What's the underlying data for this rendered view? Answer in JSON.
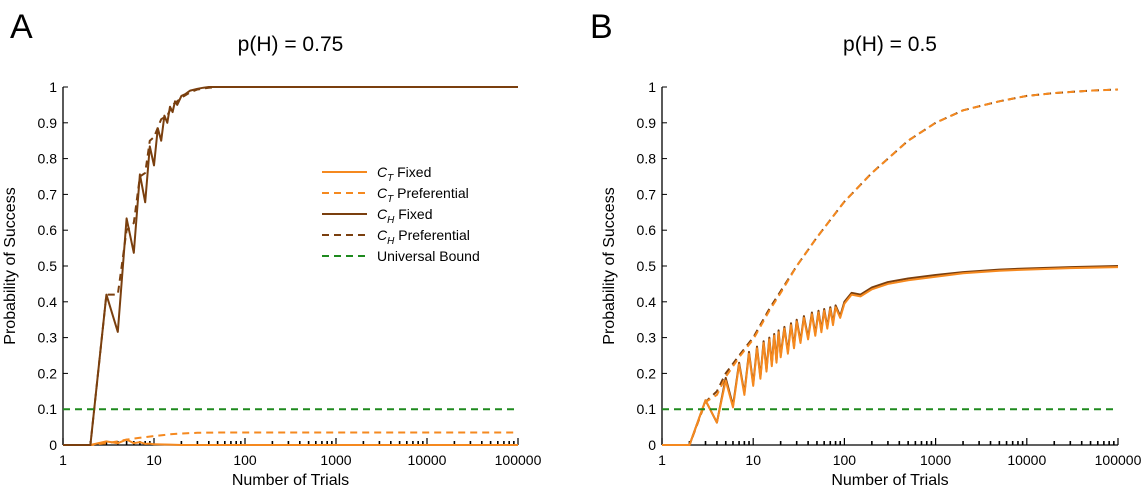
{
  "colors": {
    "ct": "#F5891F",
    "ch": "#7A3F0E",
    "bound": "#1E8A1E",
    "axis": "#000000"
  },
  "chart_data": [
    {
      "panel_label": "A",
      "type": "line",
      "title": "p(H) = 0.75",
      "xlabel": "Number of Trials",
      "ylabel": "Probability of Success",
      "xscale": "log",
      "xlim": [
        1,
        100000
      ],
      "ylim": [
        0,
        1
      ],
      "xticks": [
        "1",
        "10",
        "100",
        "1000",
        "10000",
        "100000"
      ],
      "yticks": [
        "0",
        "0.1",
        "0.2",
        "0.3",
        "0.4",
        "0.5",
        "0.6",
        "0.7",
        "0.8",
        "0.9",
        "1"
      ],
      "legend_position": "right-middle",
      "series": [
        {
          "key": "ct_fixed",
          "name_main": "C",
          "name_sub": "T",
          "name_rest": " Fixed",
          "style": "solid",
          "x": [
            1,
            2,
            3,
            4,
            5,
            6,
            7,
            8,
            9,
            10,
            15,
            20,
            50,
            100,
            100000
          ],
          "y": [
            0,
            0,
            0.01,
            0.005,
            0.015,
            0.005,
            0.008,
            0.003,
            0.004,
            0.002,
            0.001,
            0,
            0,
            0,
            0
          ]
        },
        {
          "key": "ct_pref",
          "name_main": "C",
          "name_sub": "T",
          "name_rest": " Preferential",
          "style": "dashed",
          "x": [
            1,
            2,
            3,
            4,
            5,
            7,
            10,
            15,
            20,
            30,
            50,
            100,
            1000,
            100000
          ],
          "y": [
            0,
            0,
            0.005,
            0.01,
            0.015,
            0.02,
            0.025,
            0.03,
            0.032,
            0.034,
            0.035,
            0.035,
            0.035,
            0.035
          ]
        },
        {
          "key": "ch_fixed",
          "name_main": "C",
          "name_sub": "H",
          "name_rest": " Fixed",
          "style": "solid",
          "x": [
            1,
            2,
            3,
            4,
            5,
            6,
            7,
            8,
            9,
            10,
            11,
            12,
            13,
            14,
            15,
            16,
            17,
            18,
            20,
            22,
            25,
            30,
            35,
            40,
            50,
            100,
            1000,
            100000
          ],
          "y": [
            0,
            0,
            0.42,
            0.316,
            0.633,
            0.537,
            0.756,
            0.678,
            0.834,
            0.781,
            0.885,
            0.85,
            0.92,
            0.9,
            0.945,
            0.93,
            0.96,
            0.95,
            0.975,
            0.98,
            0.99,
            0.995,
            0.998,
            1,
            1,
            1,
            1,
            1
          ]
        },
        {
          "key": "ch_pref",
          "name_main": "C",
          "name_sub": "H",
          "name_rest": " Preferential",
          "style": "dashed",
          "x": [
            1,
            2,
            3,
            4,
            5,
            6,
            7,
            8,
            9,
            10,
            12,
            14,
            16,
            18,
            20,
            25,
            30,
            40,
            50,
            100,
            100000
          ],
          "y": [
            0,
            0,
            0.42,
            0.42,
            0.6,
            0.62,
            0.75,
            0.76,
            0.85,
            0.86,
            0.91,
            0.92,
            0.95,
            0.96,
            0.97,
            0.985,
            0.993,
            0.998,
            1,
            1,
            1
          ]
        },
        {
          "key": "bound",
          "name_main": "Universal Bound",
          "name_sub": "",
          "name_rest": "",
          "style": "dashed",
          "x": [
            1,
            100000
          ],
          "y": [
            0.1,
            0.1
          ]
        }
      ]
    },
    {
      "panel_label": "B",
      "type": "line",
      "title": "p(H) = 0.5",
      "xlabel": "Number of Trials",
      "ylabel": "Probability of Success",
      "xscale": "log",
      "xlim": [
        1,
        100000
      ],
      "ylim": [
        0,
        1
      ],
      "xticks": [
        "1",
        "10",
        "100",
        "1000",
        "10000",
        "100000"
      ],
      "yticks": [
        "0",
        "0.1",
        "0.2",
        "0.3",
        "0.4",
        "0.5",
        "0.6",
        "0.7",
        "0.8",
        "0.9",
        "1"
      ],
      "series": [
        {
          "key": "pref_dark",
          "style": "dashed",
          "color": "ch",
          "x": [
            1,
            2,
            3,
            4,
            5,
            7,
            10,
            15,
            20,
            30,
            50,
            100,
            200,
            500,
            1000,
            2000,
            5000,
            10000,
            20000,
            50000,
            100000
          ],
          "y": [
            0,
            0,
            0.12,
            0.15,
            0.2,
            0.25,
            0.3,
            0.38,
            0.43,
            0.5,
            0.58,
            0.68,
            0.76,
            0.85,
            0.9,
            0.935,
            0.96,
            0.975,
            0.983,
            0.99,
            0.993
          ]
        },
        {
          "key": "pref_orange",
          "style": "dashed",
          "color": "ct",
          "x": [
            1,
            2,
            3,
            4,
            5,
            7,
            10,
            15,
            20,
            30,
            50,
            100,
            200,
            500,
            1000,
            2000,
            5000,
            10000,
            20000,
            50000,
            100000
          ],
          "y": [
            0,
            0,
            0.12,
            0.14,
            0.19,
            0.245,
            0.295,
            0.375,
            0.425,
            0.5,
            0.58,
            0.68,
            0.76,
            0.85,
            0.9,
            0.935,
            0.96,
            0.975,
            0.983,
            0.99,
            0.993
          ]
        },
        {
          "key": "fixed_dark",
          "style": "solid",
          "color": "ch",
          "x": [
            1,
            2,
            3,
            4,
            5,
            6,
            7,
            8,
            9,
            10,
            11,
            12,
            13,
            14,
            15,
            16,
            17,
            18,
            19,
            20,
            22,
            24,
            26,
            28,
            30,
            33,
            36,
            40,
            44,
            48,
            52,
            56,
            60,
            65,
            70,
            75,
            80,
            90,
            100,
            120,
            150,
            200,
            300,
            500,
            1000,
            2000,
            5000,
            10000,
            30000,
            100000
          ],
          "y": [
            0,
            0,
            0.125,
            0.0625,
            0.1875,
            0.11,
            0.23,
            0.145,
            0.26,
            0.17,
            0.275,
            0.19,
            0.29,
            0.21,
            0.3,
            0.225,
            0.31,
            0.235,
            0.32,
            0.25,
            0.33,
            0.26,
            0.34,
            0.275,
            0.35,
            0.29,
            0.36,
            0.3,
            0.37,
            0.31,
            0.375,
            0.32,
            0.38,
            0.33,
            0.385,
            0.34,
            0.39,
            0.36,
            0.4,
            0.425,
            0.42,
            0.44,
            0.455,
            0.465,
            0.475,
            0.483,
            0.49,
            0.493,
            0.497,
            0.5
          ]
        },
        {
          "key": "fixed_orange",
          "style": "solid",
          "color": "ct",
          "x": [
            1,
            2,
            3,
            4,
            5,
            6,
            7,
            8,
            9,
            10,
            11,
            12,
            13,
            14,
            15,
            16,
            17,
            18,
            19,
            20,
            22,
            24,
            26,
            28,
            30,
            33,
            36,
            40,
            44,
            48,
            52,
            56,
            60,
            65,
            70,
            75,
            80,
            90,
            100,
            120,
            150,
            200,
            300,
            500,
            1000,
            2000,
            5000,
            10000,
            30000,
            100000
          ],
          "y": [
            0,
            0,
            0.125,
            0.0625,
            0.18,
            0.105,
            0.225,
            0.14,
            0.255,
            0.165,
            0.27,
            0.185,
            0.285,
            0.205,
            0.295,
            0.22,
            0.305,
            0.23,
            0.315,
            0.245,
            0.325,
            0.255,
            0.335,
            0.27,
            0.345,
            0.285,
            0.355,
            0.295,
            0.365,
            0.305,
            0.37,
            0.315,
            0.375,
            0.325,
            0.38,
            0.335,
            0.385,
            0.355,
            0.395,
            0.42,
            0.415,
            0.435,
            0.45,
            0.46,
            0.47,
            0.48,
            0.487,
            0.49,
            0.494,
            0.497
          ]
        },
        {
          "key": "bound",
          "style": "dashed",
          "color": "bound",
          "x": [
            1,
            100000
          ],
          "y": [
            0.1,
            0.1
          ]
        }
      ]
    }
  ]
}
